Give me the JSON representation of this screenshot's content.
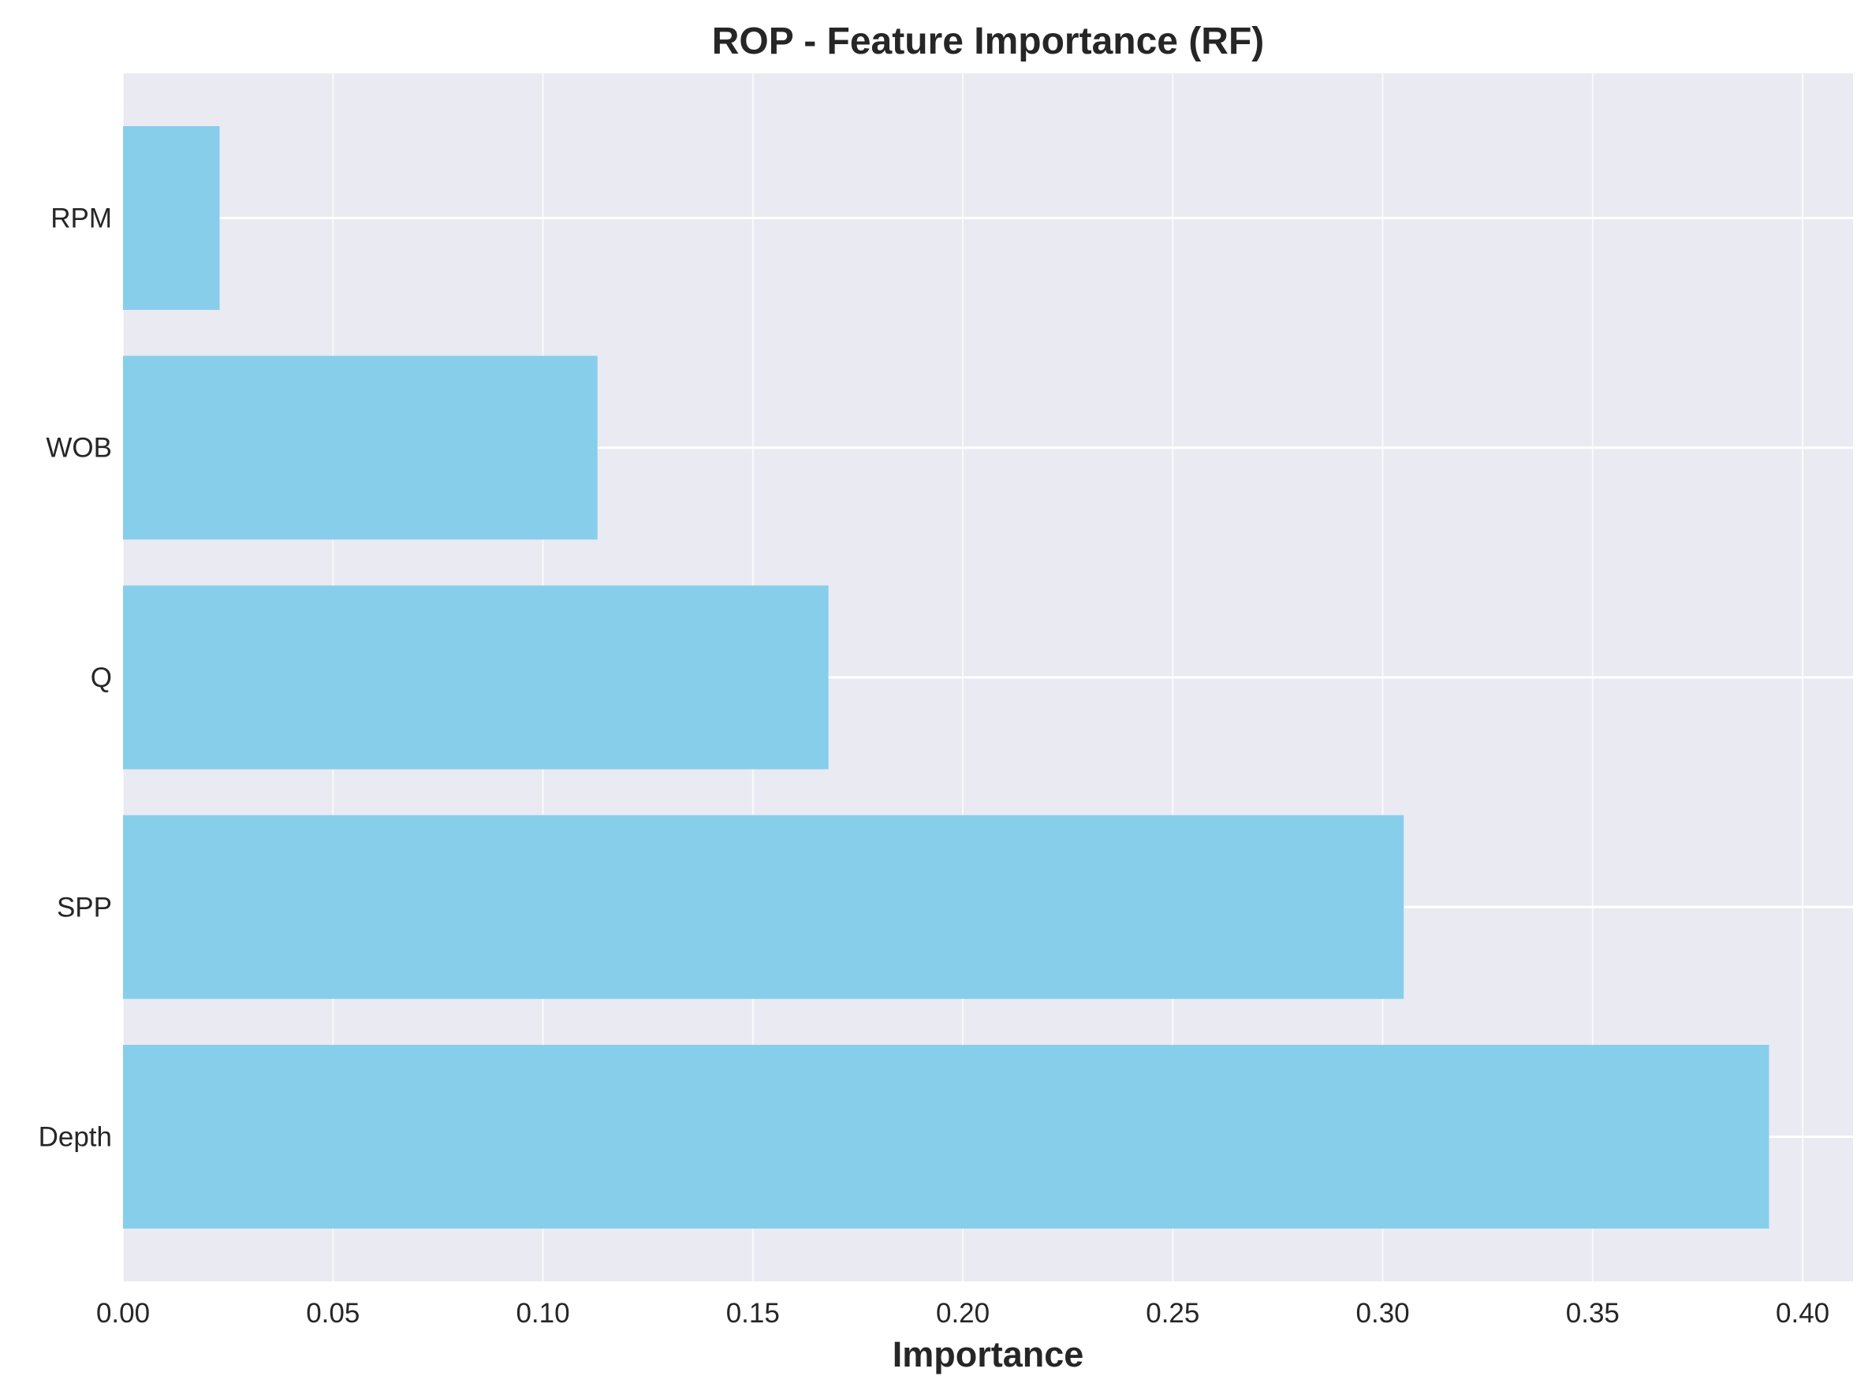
{
  "chart_data": {
    "type": "bar",
    "orientation": "horizontal",
    "title": "ROP - Feature Importance (RF)",
    "xlabel": "Importance",
    "ylabel": "",
    "categories": [
      "Depth",
      "SPP",
      "Q",
      "WOB",
      "RPM"
    ],
    "values": [
      0.392,
      0.305,
      0.168,
      0.113,
      0.023
    ],
    "xlim": [
      0.0,
      0.412
    ],
    "xticks": [
      0.0,
      0.05,
      0.1,
      0.15,
      0.2,
      0.25,
      0.3,
      0.35,
      0.4
    ],
    "xtick_labels": [
      "0.00",
      "0.05",
      "0.10",
      "0.15",
      "0.20",
      "0.25",
      "0.30",
      "0.35",
      "0.40"
    ],
    "grid": true,
    "colors": {
      "bar": "#87CEEB",
      "plot_background": "#EAEAF2",
      "grid": "#FFFFFF",
      "text": "#262626"
    }
  }
}
